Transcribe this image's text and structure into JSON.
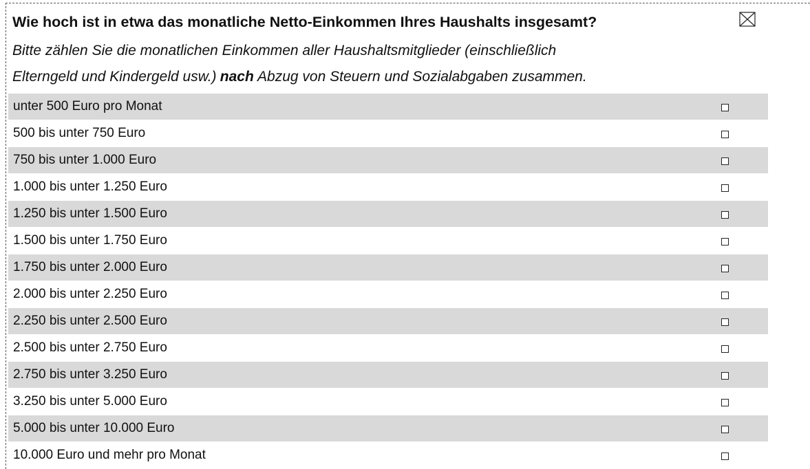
{
  "form": {
    "question": "Wie hoch ist in etwa das monatliche Netto-Einkommen Ihres Haushalts insgesamt?",
    "instruction": {
      "line1": "Bitte zählen Sie die monatlichen Einkommen aller Haushaltsmitglieder (einschließlich",
      "line2_before": "Elterngeld und Kindergeld usw.)",
      "line2_emphasis": "nach",
      "line2_after": "Abzug von Steuern und Sozialabgaben zusammen."
    },
    "options": [
      "unter 500 Euro pro Monat",
      "500 bis unter 750 Euro",
      "750 bis unter 1.000 Euro",
      "1.000 bis unter 1.250 Euro",
      "1.250 bis unter 1.500 Euro",
      "1.500 bis unter 1.750 Euro",
      "1.750 bis unter 2.000 Euro",
      "2.000 bis unter 2.250 Euro",
      "2.250 bis unter 2.500 Euro",
      "2.500 bis unter 2.750 Euro",
      "2.750 bis unter 3.250 Euro",
      "3.250 bis unter 5.000 Euro",
      "5.000 bis unter 10.000 Euro",
      "10.000 Euro und mehr pro Monat"
    ]
  }
}
